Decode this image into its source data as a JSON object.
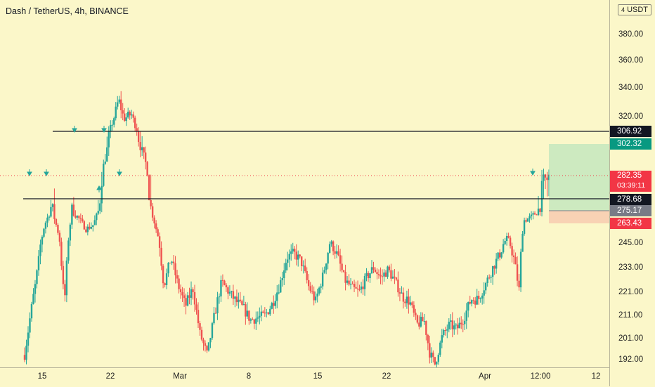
{
  "header": {
    "title": "Dash / TetherUS, 4h, BINANCE"
  },
  "price_axis": {
    "currency": "USDT",
    "ticks": [
      "380.00",
      "360.00",
      "340.00",
      "320.00",
      "245.00",
      "233.00",
      "221.00",
      "211.00",
      "201.00",
      "192.00"
    ],
    "labels": {
      "resistance": {
        "text": "306.92",
        "bg": "#131722"
      },
      "target": {
        "text": "302.32",
        "bg": "#089981"
      },
      "current": {
        "text": "282.35",
        "countdown": "03:39:11",
        "bg": "#f23645"
      },
      "support": {
        "text": "278.68",
        "bg": "#131722"
      },
      "entry": {
        "text": "275.17",
        "bg": "#787b86"
      },
      "stop": {
        "text": "263.43",
        "bg": "#f23645"
      }
    }
  },
  "time_axis": {
    "ticks": [
      "15",
      "22",
      "Mar",
      "8",
      "15",
      "22",
      "Apr",
      "12:00",
      "12"
    ]
  },
  "colors": {
    "up": "#26a69a",
    "down": "#ef5350",
    "background": "#fbf7c9"
  },
  "chart_data": {
    "type": "candlestick",
    "symbol": "Dash / TetherUS",
    "interval": "4h",
    "exchange": "BINANCE",
    "currency": "USDT",
    "y_ticks": [
      380,
      360,
      340,
      320,
      245,
      233,
      221,
      211,
      201,
      192
    ],
    "x_ticks": [
      "15",
      "22",
      "Mar",
      "8",
      "15",
      "22",
      "Apr",
      "12:00",
      "12"
    ],
    "horizontal_lines": [
      {
        "role": "resistance",
        "value": 306.92
      },
      {
        "role": "support",
        "value": 278.68
      }
    ],
    "current_price": 282.35,
    "countdown": "03:39:11",
    "position": {
      "entry": 275.17,
      "target": 302.32,
      "stop": 263.43
    },
    "price_path": [
      [
        0,
        194
      ],
      [
        0.6,
        210
      ],
      [
        1.2,
        225
      ],
      [
        1.6,
        238
      ],
      [
        2.2,
        262
      ],
      [
        3,
        278
      ],
      [
        3.8,
        252
      ],
      [
        4.4,
        215
      ],
      [
        5.2,
        275
      ],
      [
        6,
        268
      ],
      [
        6.8,
        258
      ],
      [
        7.6,
        262
      ],
      [
        8.6,
        285
      ],
      [
        9.6,
        312
      ],
      [
        10.4,
        332
      ],
      [
        11,
        318
      ],
      [
        11.8,
        322
      ],
      [
        12.6,
        305
      ],
      [
        13.4,
        290
      ],
      [
        14.2,
        270
      ],
      [
        14.8,
        250
      ],
      [
        15.4,
        224
      ],
      [
        16.2,
        238
      ],
      [
        17,
        224
      ],
      [
        17.8,
        215
      ],
      [
        18.6,
        223
      ],
      [
        19.4,
        203
      ],
      [
        20.2,
        194
      ],
      [
        21,
        211
      ],
      [
        21.8,
        226
      ],
      [
        22.6,
        221
      ],
      [
        23.4,
        217
      ],
      [
        24.2,
        214
      ],
      [
        25,
        209
      ],
      [
        25.8,
        210
      ],
      [
        26.6,
        211
      ],
      [
        27.4,
        216
      ],
      [
        28.2,
        224
      ],
      [
        29,
        238
      ],
      [
        29.8,
        240
      ],
      [
        30.6,
        236
      ],
      [
        31.4,
        224
      ],
      [
        32.2,
        217
      ],
      [
        33,
        229
      ],
      [
        33.8,
        246
      ],
      [
        34.6,
        239
      ],
      [
        35.4,
        227
      ],
      [
        36.2,
        223
      ],
      [
        37,
        221
      ],
      [
        37.8,
        228
      ],
      [
        38.6,
        233
      ],
      [
        39.4,
        228
      ],
      [
        40.2,
        232
      ],
      [
        41,
        226
      ],
      [
        41.8,
        219
      ],
      [
        42.6,
        217
      ],
      [
        43.4,
        207
      ],
      [
        44.2,
        209
      ],
      [
        44.8,
        195
      ],
      [
        45.4,
        190
      ],
      [
        46.2,
        202
      ],
      [
        47,
        207
      ],
      [
        47.8,
        205
      ],
      [
        48.6,
        210
      ],
      [
        49.4,
        218
      ],
      [
        50.2,
        218
      ],
      [
        51,
        225
      ],
      [
        51.8,
        233
      ],
      [
        52.6,
        240
      ],
      [
        53.4,
        250
      ],
      [
        54.2,
        236
      ],
      [
        54.7,
        222
      ],
      [
        55.2,
        266
      ],
      [
        56,
        269
      ],
      [
        56.8,
        275
      ],
      [
        57.5,
        281
      ],
      [
        58,
        282.35
      ]
    ]
  }
}
